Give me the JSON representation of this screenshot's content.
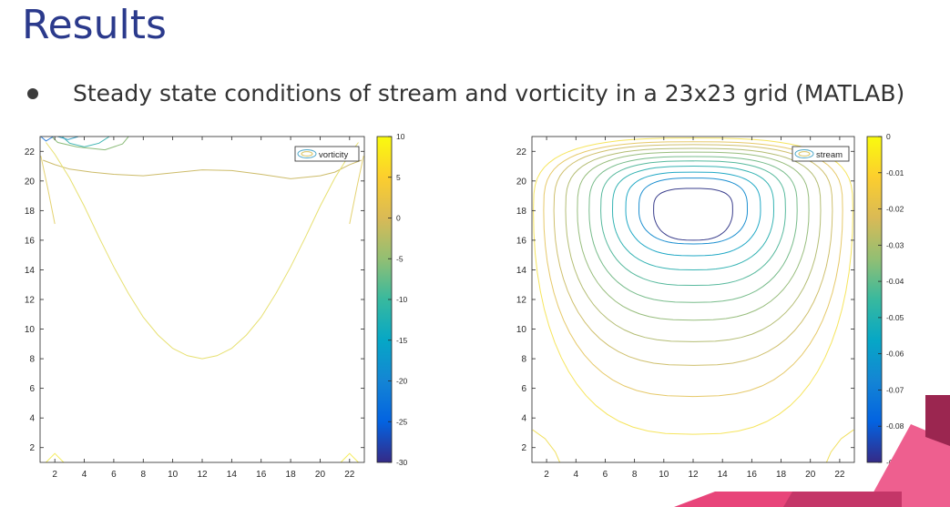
{
  "slide": {
    "title": "Results",
    "bullet": "Steady state conditions of stream and vorticity in a 23x23 grid (MATLAB)"
  },
  "theme": {
    "title_color": "#2b3a8c",
    "accent_pink": "#e8457a",
    "accent_maroon": "#9b2650"
  },
  "chart_data": [
    {
      "type": "contour",
      "legend": "vorticity",
      "legend_position": "top-right",
      "x_ticks": [
        2,
        4,
        6,
        8,
        10,
        12,
        14,
        16,
        18,
        20,
        22
      ],
      "y_ticks": [
        2,
        4,
        6,
        8,
        10,
        12,
        14,
        16,
        18,
        20,
        22
      ],
      "xlim": [
        1,
        23
      ],
      "ylim": [
        1,
        23
      ],
      "colorbar_ticks": [
        10,
        5,
        0,
        -5,
        -10,
        -15,
        -20,
        -25,
        -30
      ],
      "colorbar_range": [
        -30,
        10
      ],
      "colormap": "parula",
      "grid": false,
      "contours": [
        {
          "level": 0,
          "color": "#cdbc6a",
          "points": [
            [
              1.2,
              21.4
            ],
            [
              2,
              21.1
            ],
            [
              3,
              20.8
            ],
            [
              4.5,
              20.6
            ],
            [
              6,
              20.45
            ],
            [
              8,
              20.35
            ],
            [
              10,
              20.55
            ],
            [
              12,
              20.75
            ],
            [
              14,
              20.7
            ],
            [
              16,
              20.45
            ],
            [
              18,
              20.15
            ],
            [
              20,
              20.35
            ],
            [
              21,
              20.6
            ],
            [
              22,
              21.1
            ],
            [
              22.8,
              21.4
            ]
          ]
        },
        {
          "level": 5,
          "color": "#e7e071",
          "points": [
            [
              1.4,
              22.6
            ],
            [
              2,
              21.8
            ],
            [
              3,
              20.2
            ],
            [
              4,
              18.3
            ],
            [
              5,
              16.2
            ],
            [
              6,
              14.2
            ],
            [
              7,
              12.4
            ],
            [
              8,
              10.8
            ],
            [
              9,
              9.6
            ],
            [
              10,
              8.7
            ],
            [
              11,
              8.2
            ],
            [
              12,
              8.0
            ],
            [
              13,
              8.2
            ],
            [
              14,
              8.7
            ],
            [
              15,
              9.6
            ],
            [
              16,
              10.8
            ],
            [
              17,
              12.4
            ],
            [
              18,
              14.2
            ],
            [
              19,
              16.2
            ],
            [
              20,
              18.3
            ],
            [
              21,
              20.2
            ],
            [
              22,
              21.8
            ],
            [
              22.6,
              22.6
            ]
          ]
        },
        {
          "level": -10,
          "color": "#41b6b3",
          "points": [
            [
              2.5,
              23
            ],
            [
              3,
              22.55
            ],
            [
              4,
              22.3
            ],
            [
              5,
              22.55
            ],
            [
              5.7,
              23
            ]
          ]
        },
        {
          "level": -15,
          "color": "#3aa1c6",
          "points": [
            [
              2.2,
              23
            ],
            [
              2.9,
              22.8
            ],
            [
              3.6,
              23
            ]
          ]
        },
        {
          "level": -5,
          "color": "#8cbc7a",
          "points": [
            [
              1.8,
              23
            ],
            [
              2.2,
              22.6
            ],
            [
              3.5,
              22.3
            ],
            [
              5.4,
              22.1
            ],
            [
              6.6,
              22.5
            ],
            [
              7,
              23
            ]
          ]
        },
        {
          "level": -20,
          "color": "#2f7fd8",
          "points": [
            [
              1.05,
              23
            ],
            [
              1.4,
              22.7
            ],
            [
              1.9,
              23
            ]
          ]
        },
        {
          "level": 3,
          "color": "#e4d271",
          "points": [
            [
              1.05,
              21.7
            ],
            [
              1.5,
              19.6
            ],
            [
              1.9,
              17.6
            ],
            [
              2.0,
              17.1
            ]
          ]
        },
        {
          "level": 3,
          "color": "#e4d271",
          "points": [
            [
              22.95,
              21.7
            ],
            [
              22.5,
              19.6
            ],
            [
              22.1,
              17.6
            ],
            [
              22.0,
              17.1
            ]
          ]
        },
        {
          "level": 8,
          "color": "#f5ed5f",
          "points": [
            [
              1.4,
              1
            ],
            [
              2,
              1.6
            ],
            [
              2.6,
              1
            ]
          ]
        },
        {
          "level": 8,
          "color": "#f5ed5f",
          "points": [
            [
              21.4,
              1
            ],
            [
              22,
              1.6
            ],
            [
              22.6,
              1
            ]
          ]
        }
      ]
    },
    {
      "type": "contour",
      "legend": "stream",
      "legend_position": "top-right",
      "x_ticks": [
        2,
        4,
        6,
        8,
        10,
        12,
        14,
        16,
        18,
        20,
        22
      ],
      "y_ticks": [
        2,
        4,
        6,
        8,
        10,
        12,
        14,
        16,
        18,
        20,
        22
      ],
      "xlim": [
        1,
        23
      ],
      "ylim": [
        1,
        23
      ],
      "colorbar_ticks": [
        0,
        -0.01,
        -0.02,
        -0.03,
        -0.04,
        -0.05,
        -0.06,
        -0.07,
        -0.08,
        -0.09
      ],
      "colorbar_range": [
        -0.09,
        0
      ],
      "colormap": "parula",
      "grid": false,
      "center": [
        12,
        18
      ],
      "rings": [
        {
          "level": -0.002,
          "top": 22.9,
          "bottom": 2.9,
          "half_width": 10.9,
          "color": "#f6e55e"
        },
        {
          "level": -0.01,
          "top": 22.65,
          "bottom": 5.45,
          "half_width": 10.2,
          "color": "#e6c96a"
        },
        {
          "level": -0.017,
          "top": 22.45,
          "bottom": 7.55,
          "half_width": 9.5,
          "color": "#cfc06e"
        },
        {
          "level": -0.025,
          "top": 22.2,
          "bottom": 9.15,
          "half_width": 8.7,
          "color": "#b4bd74"
        },
        {
          "level": -0.032,
          "top": 21.95,
          "bottom": 10.6,
          "half_width": 7.9,
          "color": "#97bd7d"
        },
        {
          "level": -0.04,
          "top": 21.65,
          "bottom": 11.8,
          "half_width": 7.1,
          "color": "#78bc8b"
        },
        {
          "level": -0.047,
          "top": 21.35,
          "bottom": 12.95,
          "half_width": 6.3,
          "color": "#57b99d"
        },
        {
          "level": -0.054,
          "top": 21.0,
          "bottom": 14.0,
          "half_width": 5.5,
          "color": "#35b3b3"
        },
        {
          "level": -0.061,
          "top": 20.6,
          "bottom": 14.95,
          "half_width": 4.6,
          "color": "#22a9c6"
        },
        {
          "level": -0.068,
          "top": 20.2,
          "bottom": 15.75,
          "half_width": 3.7,
          "color": "#1c8fd0"
        },
        {
          "level": -0.075,
          "top": 19.5,
          "bottom": 16.0,
          "half_width": 2.7,
          "color": "#3a3e8c"
        }
      ],
      "corner_contours": [
        {
          "level": 0,
          "color": "#f1e05e",
          "points": [
            [
              1.05,
              3.2
            ],
            [
              1.9,
              2.6
            ],
            [
              2.6,
              1.7
            ],
            [
              2.9,
              1
            ]
          ]
        },
        {
          "level": 0,
          "color": "#f1e05e",
          "points": [
            [
              22.95,
              3.2
            ],
            [
              22.1,
              2.6
            ],
            [
              21.4,
              1.7
            ],
            [
              21.1,
              1
            ]
          ]
        }
      ]
    }
  ]
}
